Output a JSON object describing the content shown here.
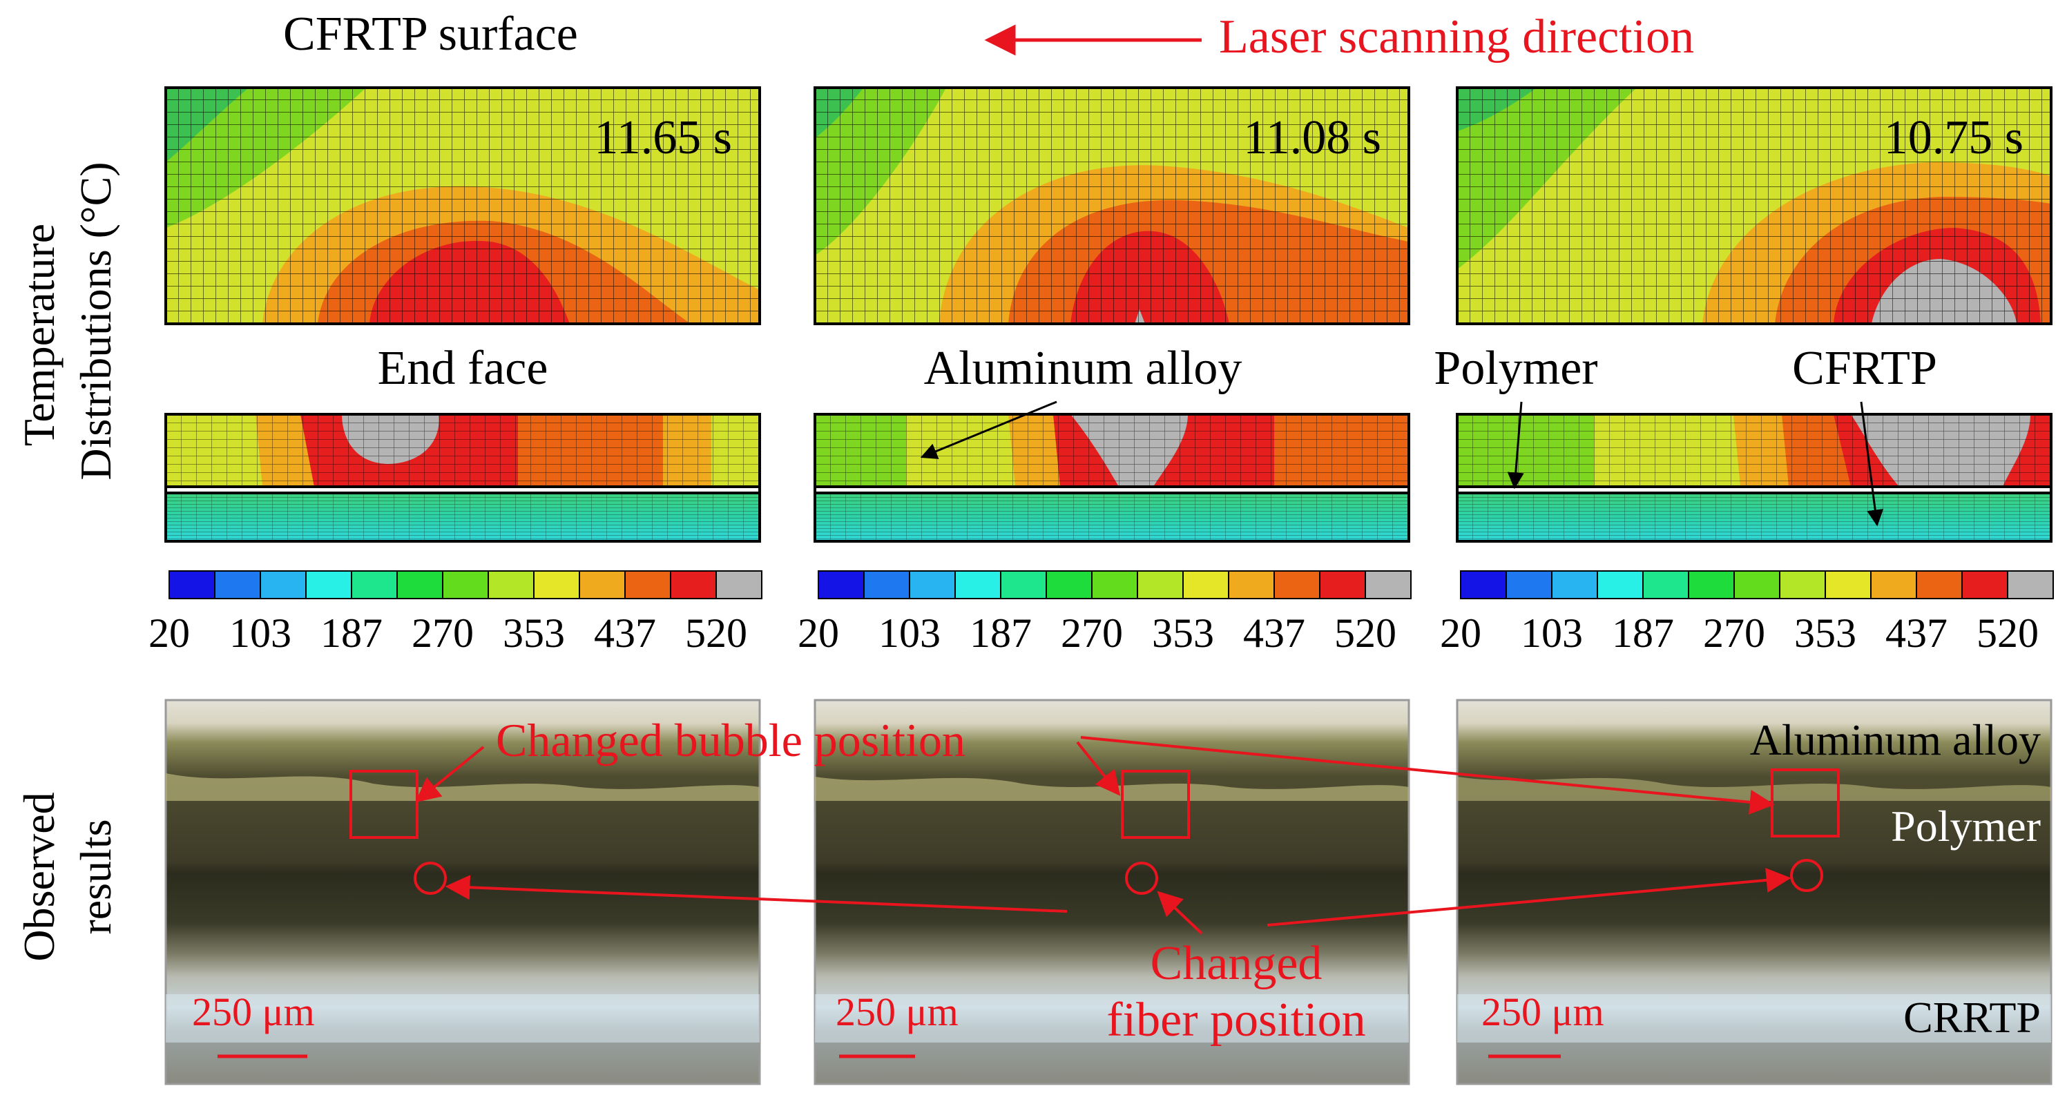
{
  "header": {
    "title": "CFRTP surface",
    "scan_direction": "Laser scanning direction"
  },
  "axis_labels": {
    "temperature_line1": "Temperature",
    "temperature_line2": "Distributions (°C)",
    "observed_line1": "Observed",
    "observed_line2": "results"
  },
  "panels": [
    {
      "time": "11.65 s",
      "scale_bar": "250 μm"
    },
    {
      "time": "11.08 s",
      "scale_bar": "250 μm"
    },
    {
      "time": "10.75 s",
      "scale_bar": "250 μm"
    }
  ],
  "section_labels": {
    "end_face": "End face",
    "aluminum_alloy": "Aluminum alloy",
    "polymer": "Polymer",
    "cfrtp": "CFRTP"
  },
  "colorbar": {
    "colors": [
      "#1414e6",
      "#1e78f0",
      "#28b4f0",
      "#28f0e6",
      "#1ee68c",
      "#1edc3c",
      "#64dc1e",
      "#b4e628",
      "#e6e628",
      "#f0aa1e",
      "#ea6414",
      "#e61e1e",
      "#b4b4b4"
    ],
    "tick_labels": [
      "20",
      "103",
      "187",
      "270",
      "353",
      "437",
      "520"
    ]
  },
  "photo_labels": {
    "aluminum_alloy": "Aluminum alloy",
    "polymer": "Polymer",
    "crrtp": "CRRTP"
  },
  "annotations": {
    "bubble": "Changed bubble position",
    "fiber_line1": "Changed",
    "fiber_line2": "fiber position"
  },
  "palette": {
    "accent_red": "#e8141e",
    "contour_green_dark": "#22b84a",
    "contour_green": "#7ed620",
    "contour_yellow": "#d2e22c",
    "contour_orange": "#f0aa1e",
    "contour_dark_orange": "#ea6414",
    "contour_red": "#e61e1e",
    "contour_gray": "#b4b4b4",
    "substrate_teal": "#3cd2a0"
  }
}
